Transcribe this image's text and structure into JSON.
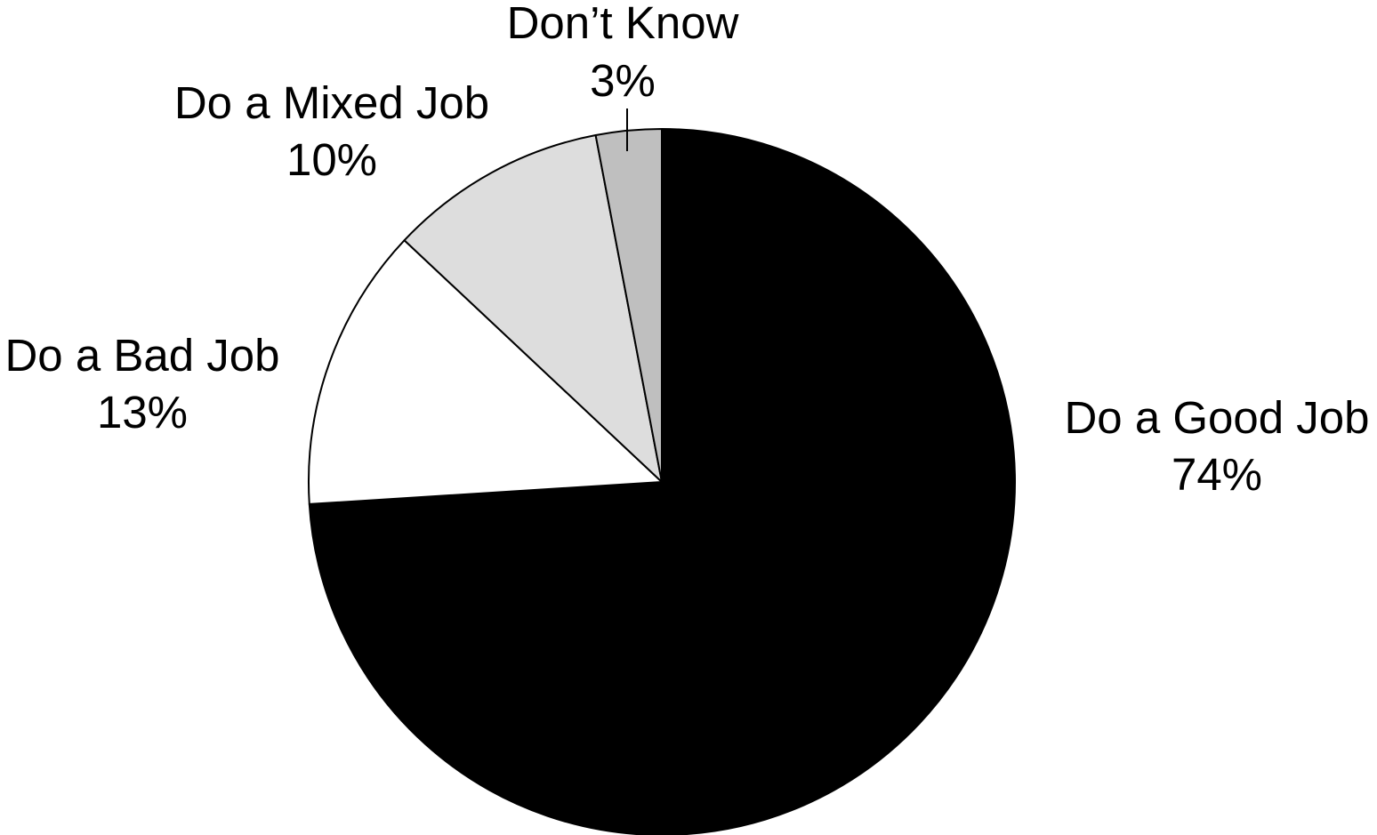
{
  "chart_data": {
    "type": "pie",
    "title": "",
    "slices": [
      {
        "label": "Do a Good Job",
        "value": 74,
        "value_label": "74%",
        "color": "#000000"
      },
      {
        "label": "Do a Bad Job",
        "value": 13,
        "value_label": "13%",
        "color": "#ffffff"
      },
      {
        "label": "Do a Mixed Job",
        "value": 10,
        "value_label": "10%",
        "color": "#dddddd"
      },
      {
        "label": "Don’t Know",
        "value": 3,
        "value_label": "3%",
        "color": "#bfbfbf"
      }
    ],
    "start": "12 o'clock",
    "direction": "clockwise",
    "legend": "none",
    "labels_outside": true
  }
}
